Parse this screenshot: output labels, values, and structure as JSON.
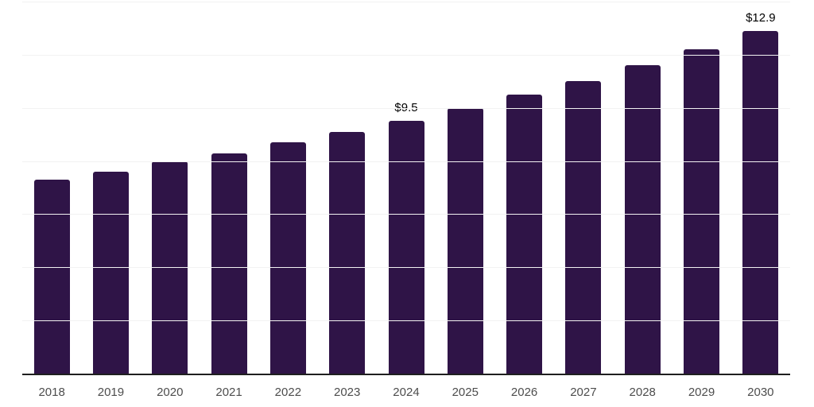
{
  "chart_data": {
    "type": "bar",
    "title": "",
    "xlabel": "",
    "ylabel": "",
    "categories": [
      "2018",
      "2019",
      "2020",
      "2021",
      "2022",
      "2023",
      "2024",
      "2025",
      "2026",
      "2027",
      "2028",
      "2029",
      "2030"
    ],
    "values": [
      7.3,
      7.6,
      8.0,
      8.3,
      8.7,
      9.1,
      9.5,
      10.0,
      10.5,
      11.0,
      11.6,
      12.2,
      12.9
    ],
    "point_labels": [
      "",
      "",
      "",
      "",
      "",
      "",
      "$9.5",
      "",
      "",
      "",
      "",
      "",
      "$12.9"
    ],
    "ylim": [
      0,
      14
    ],
    "gridline_step": 2,
    "grid": true,
    "legend": "none",
    "colors": {
      "bar": "#2f1447",
      "gridline": "#f2f2f2",
      "axis_line": "#1f1f1f",
      "tick_label": "#4d4d4d",
      "data_label": "#000000"
    }
  }
}
